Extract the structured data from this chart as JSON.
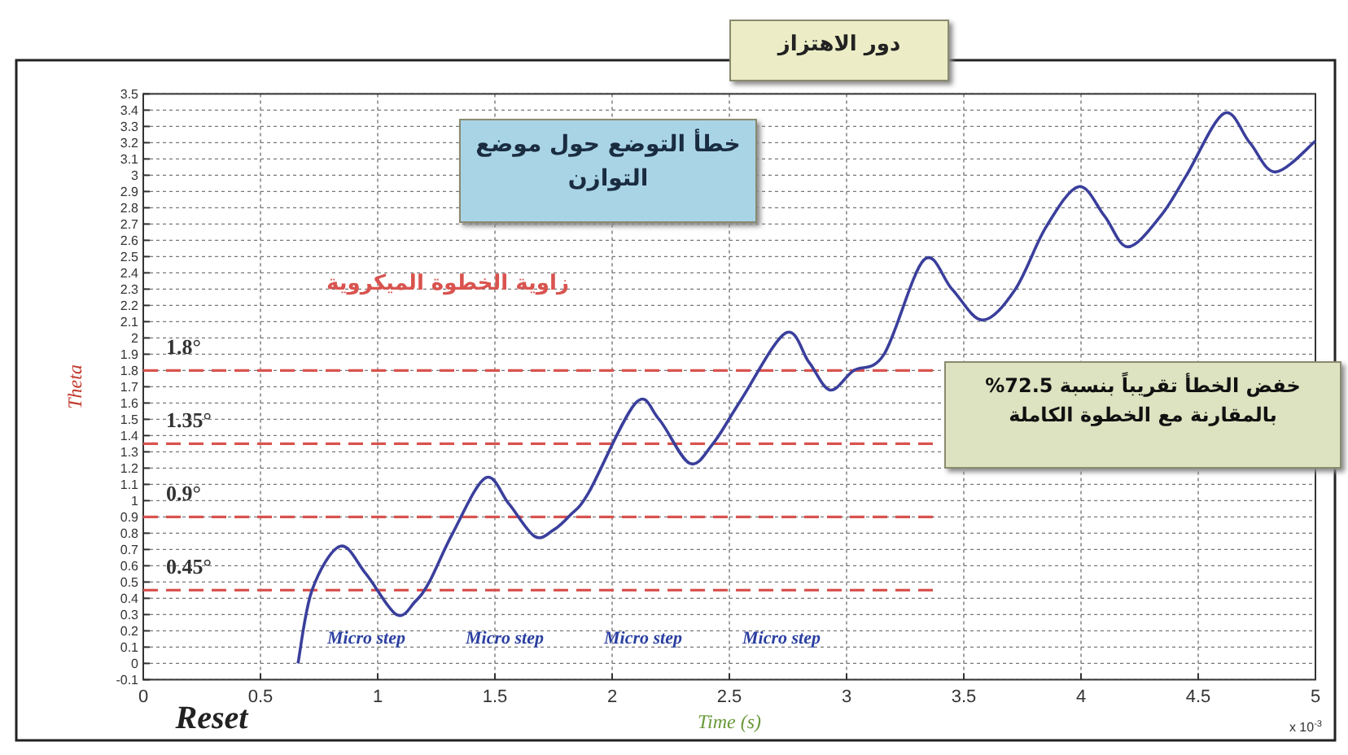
{
  "chart_data": {
    "type": "line",
    "xlabel": "Time (s)",
    "ylabel": "Theta",
    "xlim": [
      0,
      5
    ],
    "xticks": [
      0,
      0.5,
      1,
      1.5,
      2,
      2.5,
      3,
      3.5,
      4,
      4.5,
      5
    ],
    "ylim": [
      -0.1,
      3.5
    ],
    "yticks": [
      -0.1,
      0,
      0.1,
      0.2,
      0.3,
      0.4,
      0.5,
      0.6,
      0.7,
      0.8,
      0.9,
      1,
      1.1,
      1.2,
      1.3,
      1.4,
      1.5,
      1.6,
      1.7,
      1.8,
      1.9,
      2,
      2.1,
      2.2,
      2.3,
      2.4,
      2.5,
      2.6,
      2.7,
      2.8,
      2.9,
      3,
      3.1,
      3.2,
      3.3,
      3.4,
      3.5
    ],
    "grid": true,
    "series": [
      {
        "color": "#3a3f9c",
        "x": [
          0.66,
          0.72,
          0.84,
          0.95,
          1.08,
          1.16,
          1.22,
          1.32,
          1.46,
          1.56,
          1.67,
          1.75,
          1.82,
          1.9,
          2.1,
          2.2,
          2.33,
          2.43,
          2.55,
          2.74,
          2.84,
          2.93,
          3.03,
          3.16,
          3.33,
          3.45,
          3.58,
          3.72,
          3.85,
          3.99,
          4.1,
          4.2,
          4.34,
          4.45,
          4.61,
          4.72,
          4.83,
          5.0
        ],
        "values": [
          0,
          0.45,
          0.72,
          0.55,
          0.3,
          0.38,
          0.5,
          0.8,
          1.14,
          0.98,
          0.78,
          0.82,
          0.91,
          1.05,
          1.6,
          1.5,
          1.23,
          1.35,
          1.62,
          2.03,
          1.85,
          1.68,
          1.8,
          1.9,
          2.48,
          2.3,
          2.11,
          2.3,
          2.68,
          2.93,
          2.75,
          2.56,
          2.75,
          3.0,
          3.38,
          3.2,
          3.02,
          3.21
        ]
      }
    ],
    "ref_lines": [
      {
        "axis": "y",
        "value": 0.45,
        "label": "0.45°",
        "color": "#d9534f",
        "line_style": "dashed"
      },
      {
        "axis": "y",
        "value": 0.9,
        "label": "0.9°",
        "color": "#d9534f",
        "line_style": "dashed"
      },
      {
        "axis": "y",
        "value": 1.35,
        "label": "1.35°",
        "color": "#d9534f",
        "line_style": "dashed"
      },
      {
        "axis": "y",
        "value": 1.8,
        "label": "1.8°",
        "color": "#d9534f",
        "line_style": "dashed"
      }
    ],
    "annotations": [
      "Reset",
      "Micro step",
      "Micro step",
      "Micro step",
      "Micro step",
      "x 10$^{-3}$",
      "دور الاهتزاز",
      "خطأ التوضع حول موضع التوازن",
      "زاوية الخطوة الميكروية",
      "خفض الخطأ تقريباً بنسبة 72.5% بالمقارنة مع الخطوة الكاملة"
    ]
  }
}
